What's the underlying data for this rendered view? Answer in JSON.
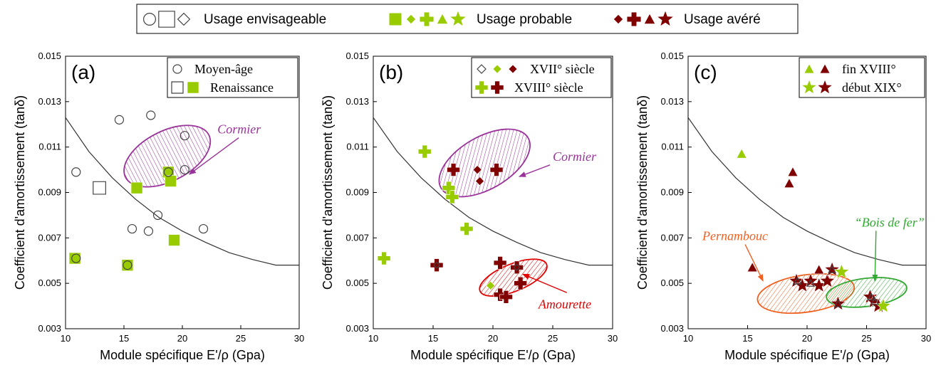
{
  "legend": {
    "groups": [
      {
        "label": "Usage envisageable",
        "color": "#444444",
        "filled": false,
        "symbols": [
          "circle",
          "square",
          "diamond"
        ]
      },
      {
        "label": "Usage probable",
        "color": "#99cc00",
        "filled": true,
        "symbols": [
          "square",
          "diamond",
          "cross",
          "triangle",
          "star"
        ]
      },
      {
        "label": "Usage avéré",
        "color": "#800000",
        "filled": true,
        "symbols": [
          "diamond",
          "cross",
          "triangle",
          "star"
        ]
      }
    ]
  },
  "colors": {
    "envisageable": "#444444",
    "probable": "#99cc00",
    "avere": "#800000",
    "cormier": "#993399",
    "amourette": "#e00000",
    "pernambouc": "#f06020",
    "bois_de_fer": "#33a833",
    "curve": "#333333"
  },
  "chart_data": [
    {
      "type": "scatter",
      "panel_label": "(a)",
      "xlabel": "Module spécifique E'/ρ (Gpa)",
      "ylabel": "Coefficient d'amortissement (tanδ)",
      "xlim": [
        10,
        30
      ],
      "ylim": [
        0.003,
        0.015
      ],
      "xticks": [
        "10",
        "15",
        "20",
        "25",
        "30"
      ],
      "yticks": [
        "0.003",
        "0.005",
        "0.007",
        "0.009",
        "0.011",
        "0.013",
        "0.015"
      ],
      "legend_position": "top-right",
      "legend": [
        {
          "label": "Moyen-âge",
          "symbols": [
            {
              "shape": "circle",
              "usage": "envisageable"
            }
          ]
        },
        {
          "label": "Renaissance",
          "symbols": [
            {
              "shape": "square",
              "usage": "envisageable"
            },
            {
              "shape": "square",
              "usage": "probable"
            }
          ]
        }
      ],
      "curve": [
        [
          10,
          0.0123
        ],
        [
          12,
          0.0108
        ],
        [
          14,
          0.00965
        ],
        [
          16,
          0.0087
        ],
        [
          18,
          0.0079
        ],
        [
          20,
          0.0073
        ],
        [
          22,
          0.0068
        ],
        [
          24,
          0.00635
        ],
        [
          26,
          0.00605
        ],
        [
          28,
          0.0058
        ],
        [
          30,
          0.0058
        ]
      ],
      "ellipses": [
        {
          "label": "Cormier",
          "cx": 18.7,
          "cy": 0.0106,
          "rx": 4.0,
          "ry": 0.0011,
          "angle": -27,
          "color": "cormier",
          "hatch": "vertical"
        }
      ],
      "annotations": [
        {
          "text": "Cormier",
          "x": 23.0,
          "y": 0.0116,
          "color": "cormier",
          "arrow_to": [
            20.6,
            0.0098
          ]
        }
      ],
      "series": [
        {
          "name": "Moyen-âge",
          "shape": "circle",
          "usage": "envisageable",
          "points": [
            [
              10.9,
              0.0099
            ],
            [
              14.6,
              0.0122
            ],
            [
              17.3,
              0.0124
            ],
            [
              20.2,
              0.0115
            ],
            [
              18.9,
              0.0099
            ],
            [
              20.2,
              0.01
            ],
            [
              17.9,
              0.008
            ],
            [
              15.7,
              0.0074
            ],
            [
              17.1,
              0.0073
            ],
            [
              21.8,
              0.0074
            ]
          ]
        },
        {
          "name": "Renaissance",
          "shape": "square",
          "usage": "envisageable",
          "points": [
            [
              12.9,
              0.0092
            ]
          ]
        },
        {
          "name": "Renaissance",
          "shape": "square",
          "usage": "probable",
          "points": [
            [
              16.1,
              0.0092
            ],
            [
              18.8,
              0.0099
            ],
            [
              19.0,
              0.0095
            ],
            [
              19.3,
              0.0069
            ],
            [
              10.8,
              0.0061
            ],
            [
              15.3,
              0.0058
            ]
          ]
        },
        {
          "name": "Moyen-âge",
          "shape": "circle",
          "usage": "envisageable",
          "points": [
            [
              10.9,
              0.0061
            ],
            [
              15.3,
              0.0058
            ],
            [
              18.8,
              0.0099
            ]
          ]
        }
      ]
    },
    {
      "type": "scatter",
      "panel_label": "(b)",
      "xlabel": "Module spécifique E'/ρ (Gpa)",
      "ylabel": "Coefficient d'amortissement (tanδ)",
      "xlim": [
        10,
        30
      ],
      "ylim": [
        0.003,
        0.015
      ],
      "xticks": [
        "10",
        "15",
        "20",
        "25",
        "30"
      ],
      "yticks": [
        "0.003",
        "0.005",
        "0.007",
        "0.009",
        "0.011",
        "0.013",
        "0.015"
      ],
      "legend_position": "top-right",
      "legend": [
        {
          "label": "XVII° siècle",
          "symbols": [
            {
              "shape": "diamond",
              "usage": "envisageable"
            },
            {
              "shape": "diamond",
              "usage": "probable"
            },
            {
              "shape": "diamond",
              "usage": "avere"
            }
          ]
        },
        {
          "label": "XVIII° siècle",
          "symbols": [
            {
              "shape": "cross",
              "usage": "probable"
            },
            {
              "shape": "cross",
              "usage": "avere"
            }
          ]
        }
      ],
      "curve": [
        [
          10,
          0.0123
        ],
        [
          12,
          0.0108
        ],
        [
          14,
          0.00965
        ],
        [
          16,
          0.0087
        ],
        [
          18,
          0.0079
        ],
        [
          20,
          0.0073
        ],
        [
          22,
          0.0068
        ],
        [
          24,
          0.00635
        ],
        [
          26,
          0.00605
        ],
        [
          28,
          0.0058
        ],
        [
          30,
          0.0058
        ]
      ],
      "ellipses": [
        {
          "label": "Cormier",
          "cx": 19.3,
          "cy": 0.0103,
          "rx": 4.2,
          "ry": 0.00115,
          "angle": -30,
          "color": "cormier",
          "hatch": "diagonal"
        },
        {
          "label": "Amourette",
          "cx": 21.7,
          "cy": 0.00525,
          "rx": 3.0,
          "ry": 0.0006,
          "angle": -22,
          "color": "amourette",
          "hatch": "diagonal"
        }
      ],
      "annotations": [
        {
          "text": "Cormier",
          "x": 25.0,
          "y": 0.0104,
          "color": "cormier",
          "arrow_to": [
            22.2,
            0.0097
          ]
        },
        {
          "text": "Amourette",
          "x": 23.8,
          "y": 0.0039,
          "color": "amourette",
          "arrow_to": [
            22.5,
            0.0054
          ]
        }
      ],
      "series": [
        {
          "name": "XVIII° siècle",
          "shape": "cross",
          "usage": "probable",
          "points": [
            [
              14.3,
              0.0108
            ],
            [
              16.3,
              0.0092
            ],
            [
              16.6,
              0.0088
            ],
            [
              17.8,
              0.0074
            ],
            [
              10.9,
              0.0061
            ]
          ]
        },
        {
          "name": "XVIII° siècle",
          "shape": "cross",
          "usage": "avere",
          "points": [
            [
              16.7,
              0.01
            ],
            [
              20.3,
              0.01
            ],
            [
              15.3,
              0.0058
            ],
            [
              20.6,
              0.0059
            ],
            [
              22.0,
              0.0057
            ],
            [
              22.3,
              0.005
            ],
            [
              20.6,
              0.0045
            ],
            [
              21.1,
              0.0044
            ]
          ]
        },
        {
          "name": "XVII° siècle",
          "shape": "diamond",
          "usage": "avere",
          "points": [
            [
              18.7,
              0.01
            ],
            [
              18.9,
              0.0095
            ]
          ]
        },
        {
          "name": "XVII° siècle",
          "shape": "diamond",
          "usage": "probable",
          "points": [
            [
              19.8,
              0.0049
            ]
          ]
        },
        {
          "name": "XVII° siècle",
          "shape": "diamond",
          "usage": "envisageable",
          "points": [
            [
              15.3,
              0.0058
            ],
            [
              22.0,
              0.0057
            ]
          ]
        }
      ]
    },
    {
      "type": "scatter",
      "panel_label": "(c)",
      "xlabel": "Module spécifique E'/ρ (Gpa)",
      "ylabel": "Coefficient d'amortissement (tanδ)",
      "xlim": [
        10,
        30
      ],
      "ylim": [
        0.003,
        0.015
      ],
      "xticks": [
        "10",
        "15",
        "20",
        "25",
        "30"
      ],
      "yticks": [
        "0.003",
        "0.005",
        "0.007",
        "0.009",
        "0.011",
        "0.013",
        "0.015"
      ],
      "legend_position": "top-right",
      "legend": [
        {
          "label": "fin XVIII°",
          "symbols": [
            {
              "shape": "triangle",
              "usage": "probable"
            },
            {
              "shape": "triangle",
              "usage": "avere"
            }
          ]
        },
        {
          "label": "début XIX°",
          "symbols": [
            {
              "shape": "star",
              "usage": "probable"
            },
            {
              "shape": "star",
              "usage": "avere"
            }
          ]
        }
      ],
      "curve": [
        [
          10,
          0.0123
        ],
        [
          12,
          0.0108
        ],
        [
          14,
          0.00965
        ],
        [
          16,
          0.0087
        ],
        [
          18,
          0.0079
        ],
        [
          20,
          0.0073
        ],
        [
          22,
          0.0068
        ],
        [
          24,
          0.00635
        ],
        [
          26,
          0.00605
        ],
        [
          28,
          0.0058
        ],
        [
          30,
          0.0058
        ]
      ],
      "ellipses": [
        {
          "label": "Pernambouc",
          "cx": 19.9,
          "cy": 0.00455,
          "rx": 4.1,
          "ry": 0.00082,
          "angle": -8,
          "color": "pernambouc",
          "hatch": "diagonal"
        },
        {
          "label": "Bois de fer",
          "cx": 25.0,
          "cy": 0.0046,
          "rx": 3.4,
          "ry": 0.00062,
          "angle": -7,
          "color": "bois_de_fer",
          "hatch": "diagonal"
        }
      ],
      "annotations": [
        {
          "text": "Pernambouc",
          "x": 11.2,
          "y": 0.0069,
          "color": "pernambouc",
          "arrow_to": [
            16.3,
            0.0051
          ]
        },
        {
          "text": "“Bois de fer”",
          "x": 24.0,
          "y": 0.0075,
          "color": "bois_de_fer",
          "arrow_to": [
            25.7,
            0.0051
          ]
        }
      ],
      "series": [
        {
          "name": "fin XVIII°",
          "shape": "triangle",
          "usage": "probable",
          "points": [
            [
              14.5,
              0.0107
            ]
          ]
        },
        {
          "name": "fin XVIII°",
          "shape": "triangle",
          "usage": "avere",
          "points": [
            [
              18.8,
              0.0099
            ],
            [
              18.5,
              0.0094
            ],
            [
              15.4,
              0.0057
            ],
            [
              21.0,
              0.0056
            ]
          ]
        },
        {
          "name": "début XIX°",
          "shape": "star",
          "usage": "avere",
          "points": [
            [
              19.1,
              0.0051
            ],
            [
              19.6,
              0.0049
            ],
            [
              20.3,
              0.0051
            ],
            [
              21.0,
              0.0049
            ],
            [
              21.7,
              0.0051
            ],
            [
              22.1,
              0.0056
            ],
            [
              22.6,
              0.0041
            ],
            [
              25.3,
              0.0044
            ],
            [
              25.6,
              0.0042
            ],
            [
              26.0,
              0.004
            ]
          ]
        },
        {
          "name": "début XIX°",
          "shape": "star",
          "usage": "probable",
          "points": [
            [
              22.9,
              0.0055
            ],
            [
              26.4,
              0.004
            ]
          ]
        },
        {
          "name": "fin XVIII°",
          "shape": "triangle",
          "usage": "envisageable",
          "points": [
            [
              19.2,
              0.0051
            ],
            [
              20.3,
              0.005
            ],
            [
              22.1,
              0.0056
            ],
            [
              25.4,
              0.0044
            ],
            [
              25.7,
              0.0042
            ],
            [
              22.6,
              0.0041
            ]
          ]
        }
      ]
    }
  ]
}
